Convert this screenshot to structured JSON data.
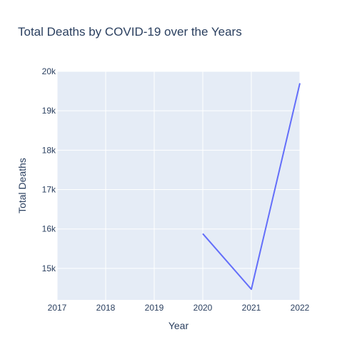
{
  "chart_data": {
    "type": "line",
    "title": "Total Deaths by COVID-19 over the Years",
    "xlabel": "Year",
    "ylabel": "Total Deaths",
    "x": [
      2020,
      2021,
      2022
    ],
    "series": [
      {
        "values": [
          15880,
          14470,
          19700
        ],
        "color": "#636efa"
      }
    ],
    "xlim": [
      2017,
      2022
    ],
    "ylim": [
      14200,
      20000
    ],
    "xticks": [
      2017,
      2018,
      2019,
      2020,
      2021,
      2022
    ],
    "xtick_labels": [
      "2017",
      "2018",
      "2019",
      "2020",
      "2021",
      "2022"
    ],
    "yticks": [
      15000,
      16000,
      17000,
      18000,
      19000,
      20000
    ],
    "ytick_labels": [
      "15k",
      "16k",
      "17k",
      "18k",
      "19k",
      "20k"
    ],
    "grid": true,
    "plot_bg": "#e5ecf6"
  }
}
